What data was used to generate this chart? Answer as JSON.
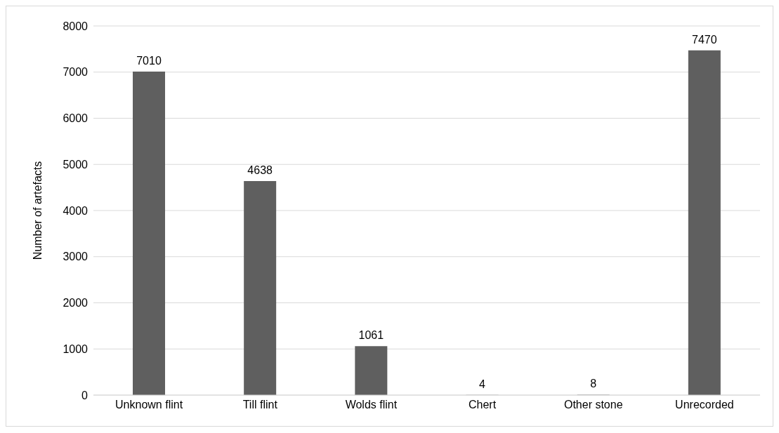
{
  "chart_data": {
    "type": "bar",
    "categories": [
      "Unknown flint",
      "Till flint",
      "Wolds flint",
      "Chert",
      "Other stone",
      "Unrecorded"
    ],
    "values": [
      7010,
      4638,
      1061,
      4,
      8,
      7470
    ],
    "color": "#5f5f5f",
    "ylabel": "Number of artefacts",
    "ylim": [
      0,
      8000
    ],
    "yticks": [
      0,
      1000,
      2000,
      3000,
      4000,
      5000,
      6000,
      7000,
      8000
    ],
    "grid": "y",
    "data_labels": true
  }
}
